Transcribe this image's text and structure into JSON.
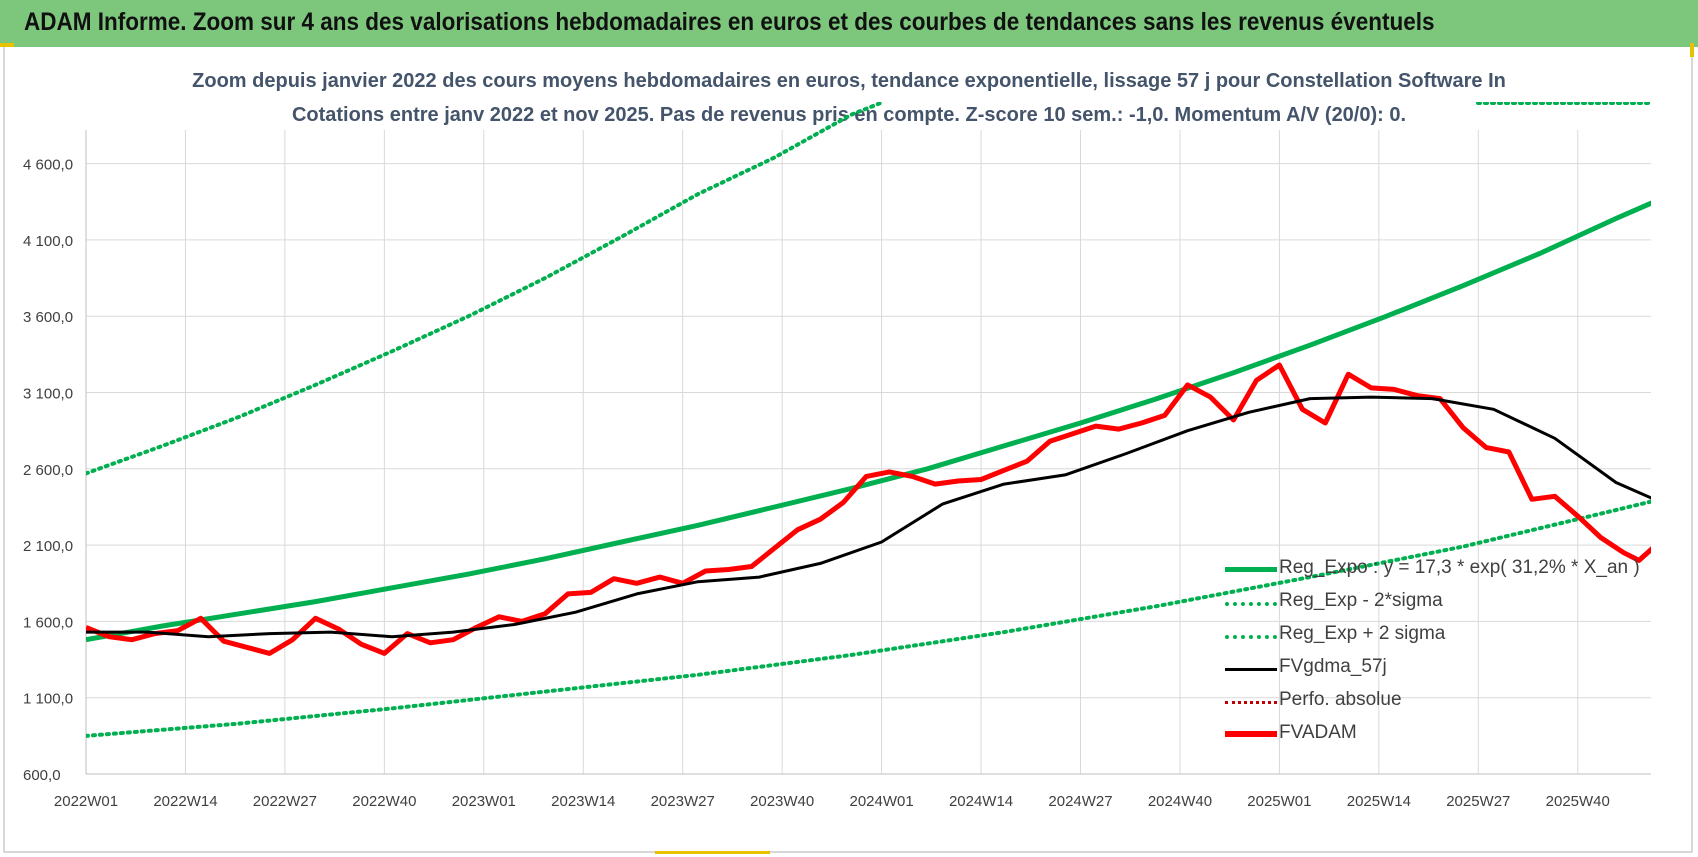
{
  "header": {
    "title": "ADAM Informe. Zoom sur 4 ans des valorisations hebdomadaires en euros et des courbes de tendances sans les revenus éventuels"
  },
  "chart_data": {
    "type": "line",
    "title": "Zoom depuis janvier 2022 des cours moyens hebdomadaires en euros, tendance exponentielle, lissage 57 j pour Constellation Software In",
    "subtitle": "Cotations entre janv 2022 et nov 2025. Pas de revenus pris en compte. Z-score 10 sem.: -1,0. Momentum A/V (20/0): 0.",
    "xlabel": "",
    "ylabel": "",
    "x_tick_labels": [
      "2022W01",
      "2022W14",
      "2022W27",
      "2022W40",
      "2023W01",
      "2023W14",
      "2023W27",
      "2023W40",
      "2024W01",
      "2024W14",
      "2024W27",
      "2024W40",
      "2025W01",
      "2025W14",
      "2025W27",
      "2025W40"
    ],
    "y_tick_labels": [
      "600,0",
      "1 100,0",
      "1 600,0",
      "2 100,0",
      "2 600,0",
      "3 100,0",
      "3 600,0",
      "4 100,0",
      "4 600,0"
    ],
    "ylim": [
      600,
      5000
    ],
    "x_range_weeks": [
      0,
      205
    ],
    "grid": true,
    "legend_position": "bottom-right",
    "colors": {
      "trend": "#00b050",
      "smooth": "#000000",
      "price": "#ff0000",
      "perfo": "#c00000",
      "grid": "#d9d9d9",
      "tick_text": "#404040"
    },
    "series": [
      {
        "name": "Reg_Expo : y = 17,3 * exp( 31,2% *  X_an )",
        "style": "solid-thick",
        "color": "#00b050",
        "x": [
          0,
          10,
          20,
          30,
          40,
          50,
          60,
          70,
          80,
          90,
          100,
          110,
          120,
          130,
          140,
          150,
          160,
          170,
          180,
          190,
          200,
          205
        ],
        "values": [
          1480,
          1570,
          1650,
          1730,
          1820,
          1910,
          2010,
          2120,
          2230,
          2350,
          2470,
          2600,
          2750,
          2900,
          3060,
          3230,
          3410,
          3600,
          3800,
          4010,
          4240,
          4350
        ]
      },
      {
        "name": "Reg_Exp - 2*sigma",
        "style": "dotted",
        "color": "#00b050",
        "x": [
          0,
          20,
          40,
          60,
          80,
          100,
          120,
          140,
          160,
          180,
          200,
          205
        ],
        "values": [
          850,
          930,
          1030,
          1140,
          1250,
          1380,
          1530,
          1700,
          1890,
          2090,
          2330,
          2390
        ]
      },
      {
        "name": "Reg_Exp + 2 sigma",
        "style": "dotted",
        "color": "#00b050",
        "x": [
          0,
          10,
          20,
          30,
          40,
          50,
          60,
          70,
          80,
          90,
          100,
          104
        ],
        "values": [
          2570,
          2750,
          2940,
          3150,
          3370,
          3600,
          3850,
          4120,
          4400,
          4640,
          4920,
          5000
        ]
      },
      {
        "name": "FVgdma_57j",
        "style": "solid",
        "color": "#000000",
        "x": [
          0,
          8,
          16,
          24,
          32,
          40,
          48,
          56,
          64,
          72,
          80,
          88,
          96,
          104,
          112,
          120,
          128,
          136,
          144,
          152,
          160,
          168,
          176,
          184,
          192,
          200,
          205
        ],
        "values": [
          1530,
          1530,
          1500,
          1520,
          1530,
          1500,
          1530,
          1580,
          1660,
          1780,
          1860,
          1890,
          1980,
          2120,
          2370,
          2500,
          2560,
          2700,
          2850,
          2970,
          3060,
          3070,
          3060,
          2990,
          2800,
          2510,
          2400
        ]
      },
      {
        "name": "Perfo. absolue",
        "style": "dotted",
        "color": "#c00000",
        "x": [],
        "values": []
      },
      {
        "name": "FVADAM",
        "style": "solid-thick",
        "color": "#ff0000",
        "x": [
          0,
          3,
          6,
          9,
          12,
          15,
          18,
          21,
          24,
          27,
          30,
          33,
          36,
          39,
          42,
          45,
          48,
          51,
          54,
          57,
          60,
          63,
          66,
          69,
          72,
          75,
          78,
          81,
          84,
          87,
          90,
          93,
          96,
          99,
          102,
          105,
          108,
          111,
          114,
          117,
          120,
          123,
          126,
          129,
          132,
          135,
          138,
          141,
          144,
          147,
          150,
          153,
          156,
          159,
          162,
          165,
          168,
          171,
          174,
          177,
          180,
          183,
          186,
          189,
          192,
          195,
          198,
          201,
          203,
          205
        ],
        "values": [
          1560,
          1500,
          1480,
          1520,
          1540,
          1620,
          1470,
          1430,
          1390,
          1480,
          1620,
          1550,
          1450,
          1390,
          1520,
          1460,
          1480,
          1560,
          1630,
          1600,
          1650,
          1780,
          1790,
          1880,
          1850,
          1890,
          1850,
          1930,
          1940,
          1960,
          2080,
          2200,
          2270,
          2380,
          2550,
          2580,
          2550,
          2500,
          2520,
          2530,
          2590,
          2650,
          2780,
          2830,
          2880,
          2860,
          2900,
          2950,
          3150,
          3070,
          2920,
          3180,
          3280,
          2990,
          2900,
          3220,
          3130,
          3120,
          3080,
          3060,
          2870,
          2740,
          2710,
          2400,
          2420,
          2290,
          2150,
          2050,
          2000,
          2090
        ]
      }
    ]
  }
}
